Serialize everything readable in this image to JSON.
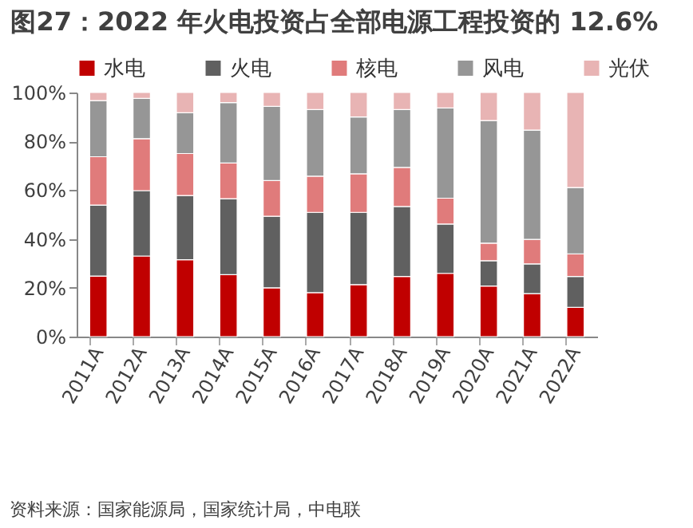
{
  "chart_data": {
    "type": "bar",
    "stacked": true,
    "title": "图27：2022 年火电投资占全部电源工程投资的 12.6%",
    "annotations": [
      "资料来源：国家能源局，国家统计局，中电联"
    ],
    "categories": [
      "2011A",
      "2012A",
      "2013A",
      "2014A",
      "2015A",
      "2016A",
      "2017A",
      "2018A",
      "2019A",
      "2020A",
      "2021A",
      "2022A"
    ],
    "series": [
      {
        "name": "水电",
        "color": "#c00000",
        "values": [
          24.8,
          33.0,
          31.5,
          25.4,
          20.0,
          18.0,
          21.3,
          24.6,
          25.9,
          20.7,
          17.6,
          12.0
        ]
      },
      {
        "name": "火电",
        "color": "#606060",
        "values": [
          29.1,
          26.8,
          26.3,
          31.1,
          29.3,
          32.9,
          29.6,
          28.7,
          20.2,
          10.4,
          12.2,
          12.6
        ]
      },
      {
        "name": "核电",
        "color": "#e07b7b",
        "values": [
          19.8,
          21.3,
          17.2,
          14.6,
          14.6,
          14.8,
          15.8,
          16.0,
          10.6,
          7.2,
          10.0,
          9.3
        ]
      },
      {
        "name": "风电",
        "color": "#969696",
        "values": [
          23.0,
          16.5,
          16.7,
          24.8,
          30.4,
          27.3,
          23.3,
          23.7,
          37.0,
          50.2,
          44.8,
          27.2
        ]
      },
      {
        "name": "光伏",
        "color": "#e8b4b4",
        "values": [
          3.3,
          2.4,
          8.3,
          4.1,
          5.7,
          7.0,
          10.0,
          7.0,
          6.3,
          11.5,
          15.4,
          38.9
        ]
      }
    ],
    "ylim": [
      0,
      100
    ],
    "yticks": [
      {
        "value": 0,
        "label": "0%"
      },
      {
        "value": 20,
        "label": "20%"
      },
      {
        "value": 40,
        "label": "40%"
      },
      {
        "value": 60,
        "label": "60%"
      },
      {
        "value": 80,
        "label": "80%"
      },
      {
        "value": 100,
        "label": "100%"
      }
    ],
    "legend": "top",
    "grid": false
  }
}
